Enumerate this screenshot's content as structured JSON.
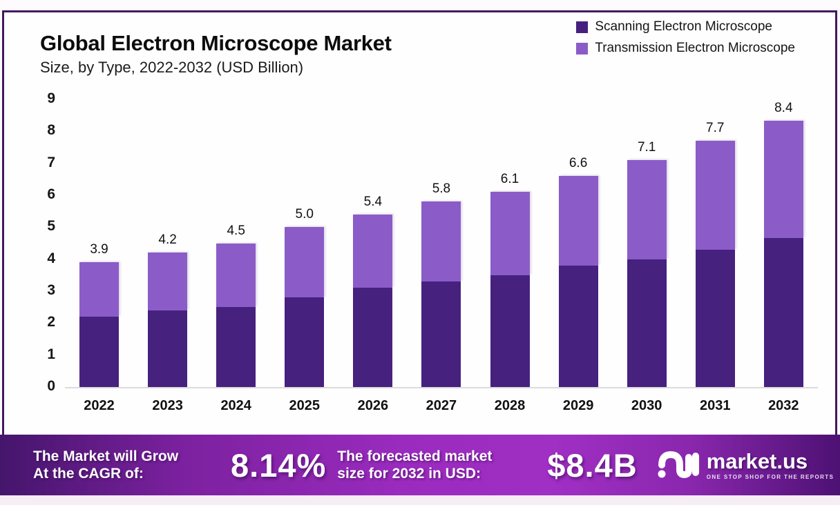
{
  "title": "Global Electron Microscope Market",
  "subtitle": "Size, by Type, 2022-2032 (USD Billion)",
  "legend": {
    "items": [
      {
        "label": "Scanning Electron Microscope",
        "color": "#46217e"
      },
      {
        "label": "Transmission Electron Microscope",
        "color": "#8b5cc7"
      }
    ]
  },
  "chart_data": {
    "type": "bar",
    "stacked": true,
    "title": "Global Electron Microscope Market Size, by Type, 2022-2032 (USD Billion)",
    "categories": [
      "2022",
      "2023",
      "2024",
      "2025",
      "2026",
      "2027",
      "2028",
      "2029",
      "2030",
      "2031",
      "2032"
    ],
    "series": [
      {
        "name": "Scanning Electron Microscope",
        "color": "#46217e",
        "values": [
          2.2,
          2.4,
          2.5,
          2.8,
          3.1,
          3.3,
          3.5,
          3.8,
          4.0,
          4.3,
          4.7
        ]
      },
      {
        "name": "Transmission Electron Microscope",
        "color": "#8b5cc7",
        "values": [
          1.7,
          1.8,
          2.0,
          2.2,
          2.3,
          2.5,
          2.6,
          2.8,
          3.1,
          3.4,
          3.7
        ]
      }
    ],
    "totals": [
      3.9,
      4.2,
      4.5,
      5.0,
      5.4,
      5.8,
      6.1,
      6.6,
      7.1,
      7.7,
      8.4
    ],
    "total_labels": [
      "3.9",
      "4.2",
      "4.5",
      "5.0",
      "5.4",
      "5.8",
      "6.1",
      "6.6",
      "7.1",
      "7.7",
      "8.4"
    ],
    "xlabel": "",
    "ylabel": "",
    "ylim": [
      0,
      9
    ],
    "yticks": [
      0,
      1,
      2,
      3,
      4,
      5,
      6,
      7,
      8,
      9
    ],
    "grid": false,
    "legend_position": "top-right"
  },
  "banner": {
    "cagr_label_line1": "The Market will Grow",
    "cagr_label_line2": "At the CAGR of:",
    "cagr_value": "8.14%",
    "forecast_label_line1": "The forecasted market",
    "forecast_label_line2": "size for 2032 in USD:",
    "forecast_value": "$8.4B",
    "logo_text": "market.us",
    "logo_tagline": "ONE STOP SHOP FOR THE REPORTS"
  },
  "colors": {
    "frame_border": "#431761",
    "sem_bar": "#46217e",
    "tem_bar": "#8b5cc7",
    "axis_line": "#dcdcdc",
    "banner_gradient_start": "#45156b",
    "banner_gradient_mid": "#a02fc4",
    "banner_gradient_end": "#4d1173",
    "bottom_strip": "#f7eef5"
  }
}
